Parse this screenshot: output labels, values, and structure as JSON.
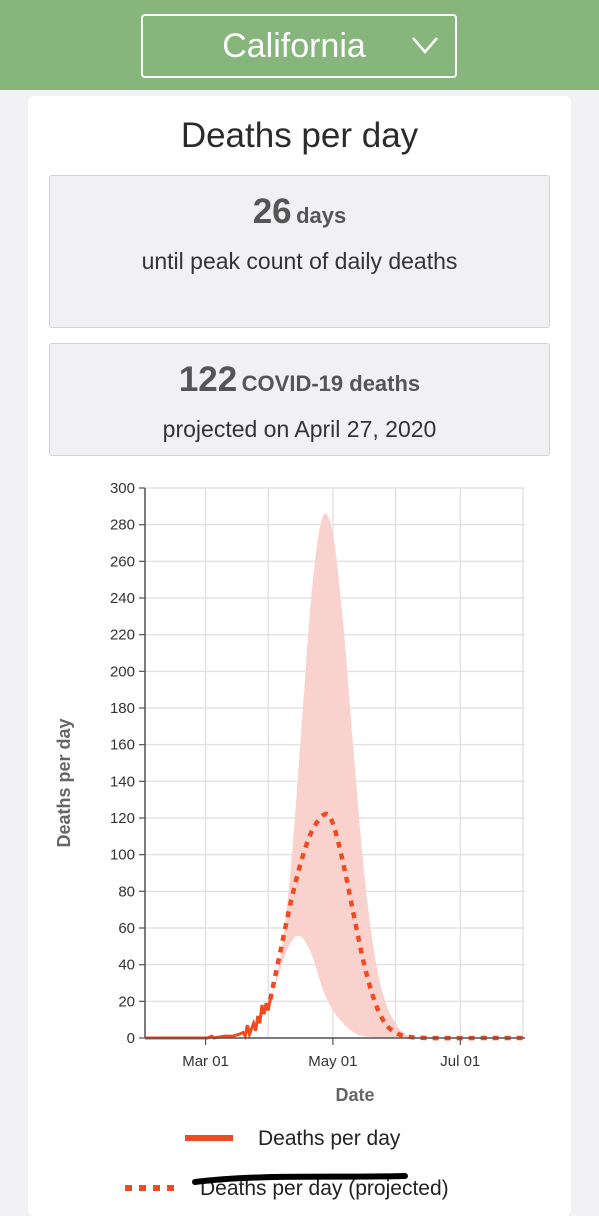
{
  "header": {
    "state": "California",
    "dropdown_icon": "chevron-down-icon"
  },
  "card": {
    "title": "Deaths per day"
  },
  "peak_stat": {
    "value": "26",
    "unit": "days",
    "description": "until peak count of daily deaths"
  },
  "projection_stat": {
    "value": "122",
    "unit": "COVID-19 deaths",
    "description": "projected on April 27, 2020"
  },
  "colors": {
    "header_green": "#86b67b",
    "series_orange": "#f04a23",
    "band_pink": "#f9d2cd"
  },
  "chart_data": {
    "type": "line",
    "title": "",
    "xlabel": "Date",
    "ylabel": "Deaths per day",
    "x_type": "date",
    "xlim": [
      "2020-02-01",
      "2020-08-01"
    ],
    "ylim": [
      0,
      300
    ],
    "y_ticks": [
      0,
      20,
      40,
      60,
      80,
      100,
      120,
      140,
      160,
      180,
      200,
      220,
      240,
      260,
      280,
      300
    ],
    "x_tick_labels": [
      {
        "date": "2020-03-01",
        "label": "Mar 01"
      },
      {
        "date": "2020-05-01",
        "label": "May 01"
      },
      {
        "date": "2020-07-01",
        "label": "Jul 01"
      }
    ],
    "grid": true,
    "legend_placement": "bottom",
    "series": [
      {
        "name": "Deaths per day",
        "style": "solid",
        "points": [
          [
            "2020-02-01",
            0
          ],
          [
            "2020-02-20",
            0
          ],
          [
            "2020-03-02",
            0
          ],
          [
            "2020-03-04",
            1
          ],
          [
            "2020-03-05",
            0
          ],
          [
            "2020-03-10",
            1
          ],
          [
            "2020-03-14",
            1
          ],
          [
            "2020-03-17",
            2
          ],
          [
            "2020-03-19",
            3
          ],
          [
            "2020-03-20",
            1
          ],
          [
            "2020-03-21",
            7
          ],
          [
            "2020-03-22",
            2
          ],
          [
            "2020-03-23",
            5
          ],
          [
            "2020-03-24",
            8
          ],
          [
            "2020-03-25",
            4
          ],
          [
            "2020-03-26",
            12
          ],
          [
            "2020-03-27",
            8
          ],
          [
            "2020-03-28",
            18
          ],
          [
            "2020-03-29",
            13
          ],
          [
            "2020-03-30",
            19
          ],
          [
            "2020-03-31",
            15
          ],
          [
            "2020-04-01",
            21
          ]
        ]
      },
      {
        "name": "Deaths per day (projected)",
        "style": "dashed",
        "points": [
          [
            "2020-04-01",
            21
          ],
          [
            "2020-04-06",
            48
          ],
          [
            "2020-04-11",
            75
          ],
          [
            "2020-04-16",
            97
          ],
          [
            "2020-04-21",
            113
          ],
          [
            "2020-04-27",
            122
          ],
          [
            "2020-05-01",
            117
          ],
          [
            "2020-05-06",
            95
          ],
          [
            "2020-05-11",
            67
          ],
          [
            "2020-05-16",
            40
          ],
          [
            "2020-05-21",
            20
          ],
          [
            "2020-05-26",
            8
          ],
          [
            "2020-05-31",
            3
          ],
          [
            "2020-06-05",
            1
          ],
          [
            "2020-06-15",
            0
          ],
          [
            "2020-07-15",
            0
          ],
          [
            "2020-07-31",
            0
          ]
        ]
      }
    ],
    "uncertainty_band": {
      "upper": [
        [
          "2020-04-01",
          21
        ],
        [
          "2020-04-06",
          45
        ],
        [
          "2020-04-11",
          95
        ],
        [
          "2020-04-16",
          170
        ],
        [
          "2020-04-21",
          245
        ],
        [
          "2020-04-26",
          284
        ],
        [
          "2020-05-01",
          275
        ],
        [
          "2020-05-06",
          225
        ],
        [
          "2020-05-11",
          155
        ],
        [
          "2020-05-16",
          90
        ],
        [
          "2020-05-21",
          45
        ],
        [
          "2020-05-26",
          20
        ],
        [
          "2020-05-31",
          8
        ],
        [
          "2020-06-05",
          2
        ],
        [
          "2020-06-15",
          0
        ]
      ],
      "lower": [
        [
          "2020-06-15",
          0
        ],
        [
          "2020-05-26",
          0
        ],
        [
          "2020-05-16",
          1
        ],
        [
          "2020-05-11",
          3
        ],
        [
          "2020-05-06",
          8
        ],
        [
          "2020-05-01",
          15
        ],
        [
          "2020-04-26",
          27
        ],
        [
          "2020-04-21",
          45
        ],
        [
          "2020-04-16",
          55
        ],
        [
          "2020-04-12",
          54
        ],
        [
          "2020-04-08",
          45
        ],
        [
          "2020-04-05",
          34
        ],
        [
          "2020-04-01",
          21
        ]
      ]
    }
  }
}
